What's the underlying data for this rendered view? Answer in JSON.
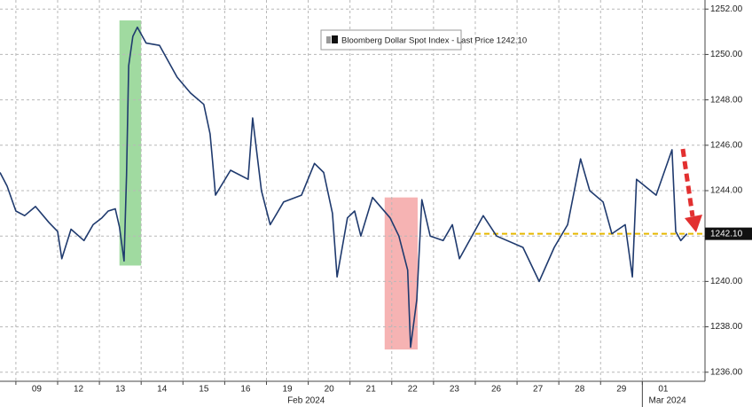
{
  "chart_data": {
    "type": "line",
    "series": [
      {
        "name": "Bloomberg Dollar Spot Index - Last Price",
        "color": "#1f3a6e",
        "x": [
          -0.38,
          -0.21,
          0,
          0.21,
          0.47,
          0.79,
          1.0,
          1.1,
          1.32,
          1.63,
          1.85,
          2.06,
          2.21,
          2.38,
          2.48,
          2.59,
          2.65,
          2.7,
          2.8,
          2.91,
          3.12,
          3.44,
          3.86,
          4.18,
          4.5,
          4.65,
          4.71,
          4.78,
          5.14,
          5.56,
          5.67,
          5.88,
          6.09,
          6.41,
          6.84,
          7.15,
          7.37,
          7.58,
          7.69,
          7.94,
          8.11,
          8.26,
          8.54,
          8.96,
          9.17,
          9.38,
          9.45,
          9.6,
          9.72,
          9.92,
          10.23,
          10.45,
          10.62,
          11.19,
          11.51,
          12.14,
          12.53,
          12.89,
          13.21,
          13.52,
          13.74,
          14.06,
          14.27,
          14.59,
          14.76,
          14.86,
          15.33,
          15.71,
          15.8,
          15.92,
          16.07
        ],
        "values": [
          1244.8,
          1244.2,
          1243.1,
          1242.9,
          1243.3,
          1242.6,
          1242.2,
          1241.0,
          1242.3,
          1241.8,
          1242.5,
          1242.8,
          1243.1,
          1243.2,
          1242.4,
          1240.9,
          1244.7,
          1249.5,
          1250.8,
          1251.2,
          1250.5,
          1250.4,
          1249.0,
          1248.3,
          1247.8,
          1246.5,
          1245.3,
          1243.8,
          1244.9,
          1244.5,
          1247.2,
          1244.0,
          1242.5,
          1243.5,
          1243.8,
          1245.2,
          1244.8,
          1243.0,
          1240.2,
          1242.8,
          1243.1,
          1242.0,
          1243.7,
          1242.8,
          1242.0,
          1240.5,
          1237.1,
          1239.2,
          1243.6,
          1242.0,
          1241.8,
          1242.5,
          1241.0,
          1242.9,
          1242.0,
          1241.5,
          1240.0,
          1241.5,
          1242.5,
          1245.4,
          1244.0,
          1243.5,
          1242.1,
          1242.5,
          1240.2,
          1244.5,
          1243.8,
          1245.8,
          1242.2,
          1241.8,
          1242.1
        ]
      }
    ],
    "last_price": {
      "value": 1242.1,
      "label": "1242.10"
    },
    "xlim": [
      -0.38,
      16.5
    ],
    "ylim": [
      1235.6,
      1252.4
    ],
    "xticks": [
      {
        "value": 0.5,
        "label": "09"
      },
      {
        "value": 1.5,
        "label": "12"
      },
      {
        "value": 2.5,
        "label": "13"
      },
      {
        "value": 3.5,
        "label": "14"
      },
      {
        "value": 4.5,
        "label": "15"
      },
      {
        "value": 5.5,
        "label": "16"
      },
      {
        "value": 6.5,
        "label": "19"
      },
      {
        "value": 7.5,
        "label": "20"
      },
      {
        "value": 8.5,
        "label": "21"
      },
      {
        "value": 9.5,
        "label": "22"
      },
      {
        "value": 10.5,
        "label": "23"
      },
      {
        "value": 11.5,
        "label": "26"
      },
      {
        "value": 12.5,
        "label": "27"
      },
      {
        "value": 13.5,
        "label": "28"
      },
      {
        "value": 14.5,
        "label": "29"
      },
      {
        "value": 15.5,
        "label": "01"
      }
    ],
    "x_group_labels": [
      {
        "value": 6.95,
        "label": "Feb 2024"
      },
      {
        "value": 15.6,
        "label": "Mar 2024"
      }
    ],
    "yticks": [
      {
        "value": 1236,
        "label": "1236.00"
      },
      {
        "value": 1238,
        "label": "1238.00"
      },
      {
        "value": 1240,
        "label": "1240.00"
      },
      {
        "value": 1242,
        "label": "1242.00"
      },
      {
        "value": 1244,
        "label": "1244.00"
      },
      {
        "value": 1246,
        "label": "1246.00"
      },
      {
        "value": 1248,
        "label": "1248.00"
      },
      {
        "value": 1250,
        "label": "1250.00"
      },
      {
        "value": 1252,
        "label": "1252.00"
      }
    ],
    "highlights": [
      {
        "xlim": [
          2.48,
          3.0
        ],
        "ylim": [
          1240.7,
          1251.5
        ],
        "color": "#8fd38f"
      },
      {
        "xlim": [
          8.83,
          9.62
        ],
        "ylim": [
          1237.0,
          1243.7
        ],
        "color": "#f4a6a6"
      }
    ],
    "reference_line": {
      "y": 1242.1,
      "x_start": 11.0,
      "color": "#e6b800"
    },
    "grid": true
  }
}
